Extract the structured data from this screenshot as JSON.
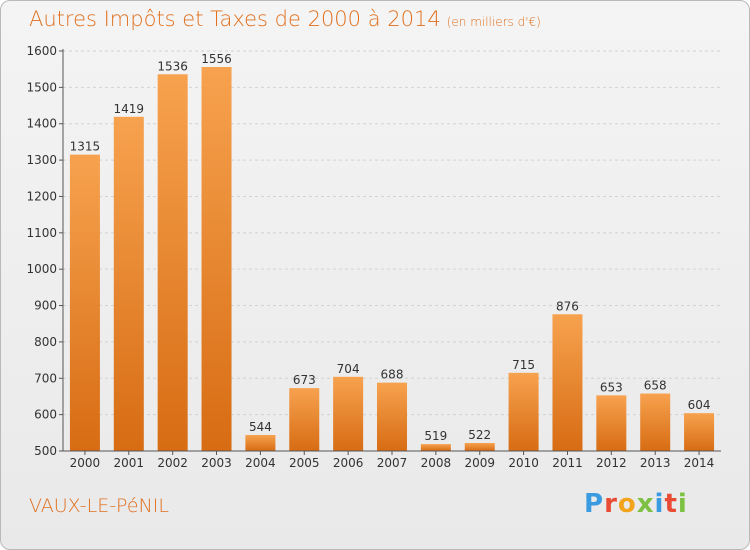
{
  "header": {
    "title": "Autres Impôts et Taxes de 2000 à 2014",
    "unit": "(en milliers d'€)"
  },
  "footer": {
    "commune": "VAUX-LE-PéNIL",
    "logo": "Proxiti"
  },
  "colors": {
    "bar_light": "#f7a24f",
    "bar_dark": "#d76c13",
    "title": "#e0701e",
    "logo_letters": [
      "#3b9be0",
      "#e94b35",
      "#f2a51c",
      "#7dc142",
      "#3b9be0",
      "#e94b35",
      "#7dc142"
    ]
  },
  "chart_data": {
    "type": "bar",
    "title": "Autres Impôts et Taxes de 2000 à 2014",
    "subtitle": "(en milliers d'€)",
    "categories": [
      "2000",
      "2001",
      "2002",
      "2003",
      "2004",
      "2005",
      "2006",
      "2007",
      "2008",
      "2009",
      "2010",
      "2011",
      "2012",
      "2013",
      "2014"
    ],
    "values": [
      1315,
      1419,
      1536,
      1556,
      544,
      673,
      704,
      688,
      519,
      522,
      715,
      876,
      653,
      658,
      604
    ],
    "ylim": [
      500,
      1600
    ],
    "yticks": [
      500,
      600,
      700,
      800,
      900,
      1000,
      1100,
      1200,
      1300,
      1400,
      1500,
      1600
    ],
    "grid": true,
    "data_labels": true
  }
}
